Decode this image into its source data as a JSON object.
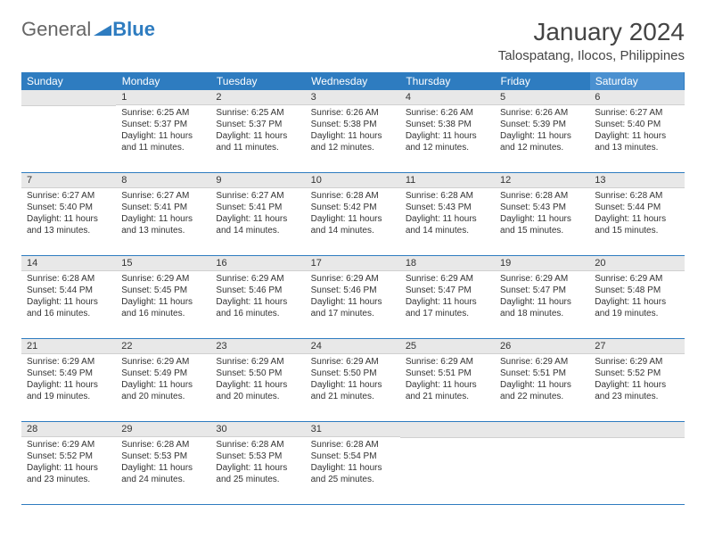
{
  "logo": {
    "text1": "General",
    "text2": "Blue"
  },
  "title": "January 2024",
  "location": "Talospatang, Ilocos, Philippines",
  "colors": {
    "header_bg": "#2e7cc0",
    "header_bg_sat": "#4a90d0",
    "daynum_bg": "#e8e8e8",
    "row_border": "#2e7cc0",
    "text": "#333333"
  },
  "day_names": [
    "Sunday",
    "Monday",
    "Tuesday",
    "Wednesday",
    "Thursday",
    "Friday",
    "Saturday"
  ],
  "weeks": [
    [
      {
        "n": "",
        "sr": "",
        "ss": "",
        "dl": ""
      },
      {
        "n": "1",
        "sr": "Sunrise: 6:25 AM",
        "ss": "Sunset: 5:37 PM",
        "dl": "Daylight: 11 hours and 11 minutes."
      },
      {
        "n": "2",
        "sr": "Sunrise: 6:25 AM",
        "ss": "Sunset: 5:37 PM",
        "dl": "Daylight: 11 hours and 11 minutes."
      },
      {
        "n": "3",
        "sr": "Sunrise: 6:26 AM",
        "ss": "Sunset: 5:38 PM",
        "dl": "Daylight: 11 hours and 12 minutes."
      },
      {
        "n": "4",
        "sr": "Sunrise: 6:26 AM",
        "ss": "Sunset: 5:38 PM",
        "dl": "Daylight: 11 hours and 12 minutes."
      },
      {
        "n": "5",
        "sr": "Sunrise: 6:26 AM",
        "ss": "Sunset: 5:39 PM",
        "dl": "Daylight: 11 hours and 12 minutes."
      },
      {
        "n": "6",
        "sr": "Sunrise: 6:27 AM",
        "ss": "Sunset: 5:40 PM",
        "dl": "Daylight: 11 hours and 13 minutes."
      }
    ],
    [
      {
        "n": "7",
        "sr": "Sunrise: 6:27 AM",
        "ss": "Sunset: 5:40 PM",
        "dl": "Daylight: 11 hours and 13 minutes."
      },
      {
        "n": "8",
        "sr": "Sunrise: 6:27 AM",
        "ss": "Sunset: 5:41 PM",
        "dl": "Daylight: 11 hours and 13 minutes."
      },
      {
        "n": "9",
        "sr": "Sunrise: 6:27 AM",
        "ss": "Sunset: 5:41 PM",
        "dl": "Daylight: 11 hours and 14 minutes."
      },
      {
        "n": "10",
        "sr": "Sunrise: 6:28 AM",
        "ss": "Sunset: 5:42 PM",
        "dl": "Daylight: 11 hours and 14 minutes."
      },
      {
        "n": "11",
        "sr": "Sunrise: 6:28 AM",
        "ss": "Sunset: 5:43 PM",
        "dl": "Daylight: 11 hours and 14 minutes."
      },
      {
        "n": "12",
        "sr": "Sunrise: 6:28 AM",
        "ss": "Sunset: 5:43 PM",
        "dl": "Daylight: 11 hours and 15 minutes."
      },
      {
        "n": "13",
        "sr": "Sunrise: 6:28 AM",
        "ss": "Sunset: 5:44 PM",
        "dl": "Daylight: 11 hours and 15 minutes."
      }
    ],
    [
      {
        "n": "14",
        "sr": "Sunrise: 6:28 AM",
        "ss": "Sunset: 5:44 PM",
        "dl": "Daylight: 11 hours and 16 minutes."
      },
      {
        "n": "15",
        "sr": "Sunrise: 6:29 AM",
        "ss": "Sunset: 5:45 PM",
        "dl": "Daylight: 11 hours and 16 minutes."
      },
      {
        "n": "16",
        "sr": "Sunrise: 6:29 AM",
        "ss": "Sunset: 5:46 PM",
        "dl": "Daylight: 11 hours and 16 minutes."
      },
      {
        "n": "17",
        "sr": "Sunrise: 6:29 AM",
        "ss": "Sunset: 5:46 PM",
        "dl": "Daylight: 11 hours and 17 minutes."
      },
      {
        "n": "18",
        "sr": "Sunrise: 6:29 AM",
        "ss": "Sunset: 5:47 PM",
        "dl": "Daylight: 11 hours and 17 minutes."
      },
      {
        "n": "19",
        "sr": "Sunrise: 6:29 AM",
        "ss": "Sunset: 5:47 PM",
        "dl": "Daylight: 11 hours and 18 minutes."
      },
      {
        "n": "20",
        "sr": "Sunrise: 6:29 AM",
        "ss": "Sunset: 5:48 PM",
        "dl": "Daylight: 11 hours and 19 minutes."
      }
    ],
    [
      {
        "n": "21",
        "sr": "Sunrise: 6:29 AM",
        "ss": "Sunset: 5:49 PM",
        "dl": "Daylight: 11 hours and 19 minutes."
      },
      {
        "n": "22",
        "sr": "Sunrise: 6:29 AM",
        "ss": "Sunset: 5:49 PM",
        "dl": "Daylight: 11 hours and 20 minutes."
      },
      {
        "n": "23",
        "sr": "Sunrise: 6:29 AM",
        "ss": "Sunset: 5:50 PM",
        "dl": "Daylight: 11 hours and 20 minutes."
      },
      {
        "n": "24",
        "sr": "Sunrise: 6:29 AM",
        "ss": "Sunset: 5:50 PM",
        "dl": "Daylight: 11 hours and 21 minutes."
      },
      {
        "n": "25",
        "sr": "Sunrise: 6:29 AM",
        "ss": "Sunset: 5:51 PM",
        "dl": "Daylight: 11 hours and 21 minutes."
      },
      {
        "n": "26",
        "sr": "Sunrise: 6:29 AM",
        "ss": "Sunset: 5:51 PM",
        "dl": "Daylight: 11 hours and 22 minutes."
      },
      {
        "n": "27",
        "sr": "Sunrise: 6:29 AM",
        "ss": "Sunset: 5:52 PM",
        "dl": "Daylight: 11 hours and 23 minutes."
      }
    ],
    [
      {
        "n": "28",
        "sr": "Sunrise: 6:29 AM",
        "ss": "Sunset: 5:52 PM",
        "dl": "Daylight: 11 hours and 23 minutes."
      },
      {
        "n": "29",
        "sr": "Sunrise: 6:28 AM",
        "ss": "Sunset: 5:53 PM",
        "dl": "Daylight: 11 hours and 24 minutes."
      },
      {
        "n": "30",
        "sr": "Sunrise: 6:28 AM",
        "ss": "Sunset: 5:53 PM",
        "dl": "Daylight: 11 hours and 25 minutes."
      },
      {
        "n": "31",
        "sr": "Sunrise: 6:28 AM",
        "ss": "Sunset: 5:54 PM",
        "dl": "Daylight: 11 hours and 25 minutes."
      },
      {
        "n": "",
        "sr": "",
        "ss": "",
        "dl": ""
      },
      {
        "n": "",
        "sr": "",
        "ss": "",
        "dl": ""
      },
      {
        "n": "",
        "sr": "",
        "ss": "",
        "dl": ""
      }
    ]
  ]
}
